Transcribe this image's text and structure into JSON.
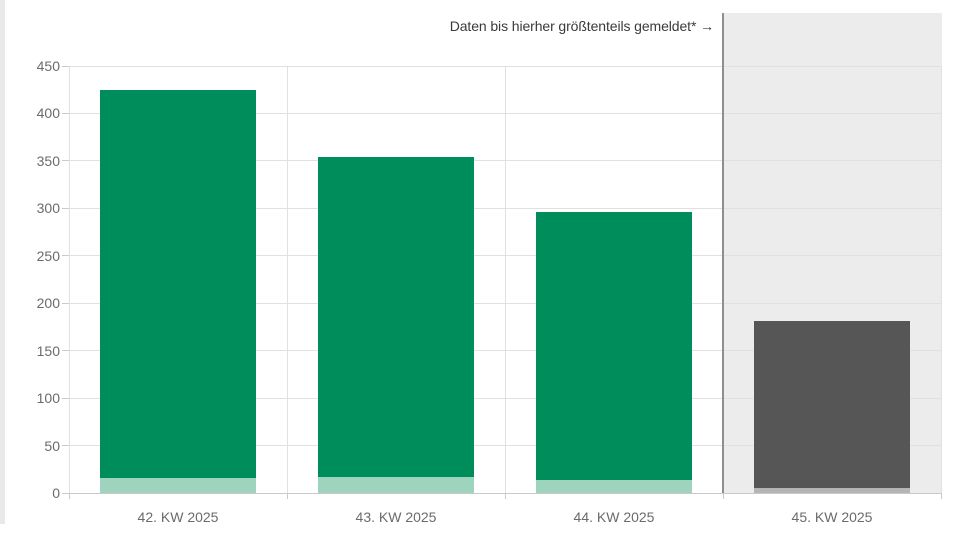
{
  "page": {
    "background": "#ffffff",
    "edge_strip_color": "#e9e9e9"
  },
  "chart_data": {
    "type": "bar",
    "stacked": true,
    "title": "",
    "xlabel": "",
    "ylabel": "",
    "categories": [
      "42. KW 2025",
      "43. KW 2025",
      "44. KW 2025",
      "45. KW 2025"
    ],
    "series": [
      {
        "name": "segment-bottom-light",
        "values": [
          16,
          17,
          14,
          5
        ]
      },
      {
        "name": "segment-top-dark",
        "values": [
          409,
          337,
          282,
          176
        ]
      }
    ],
    "totals": [
      425,
      354,
      296,
      181
    ],
    "bar_status": [
      "reported",
      "reported",
      "reported",
      "provisional"
    ],
    "ylim": [
      0,
      450
    ],
    "yticks": [
      0,
      50,
      100,
      150,
      200,
      250,
      300,
      350,
      400,
      450
    ],
    "grid": true,
    "legend": "none",
    "annotation": {
      "text": "Daten bis hierher größtenteils gemeldet* →"
    },
    "cutoff_region": {
      "category_index": 3
    },
    "colors": {
      "reported_main": "#008d5c",
      "reported_base": "#9ed3bd",
      "provisional_main": "#565656",
      "provisional_base": "#b4b4b4",
      "cutoff_fill": "#ececec",
      "cutoff_line": "#8f8f8f",
      "gridline": "#e1e1e1",
      "axis_line": "#c9c9c9",
      "label_text": "#6b6b6b",
      "annotation_text": "#3a3a3a"
    }
  }
}
